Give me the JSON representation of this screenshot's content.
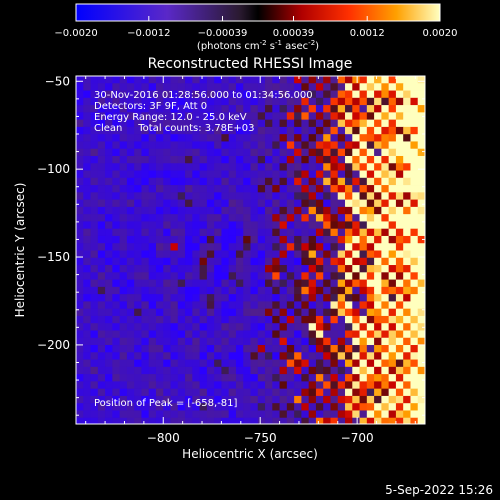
{
  "chart_data": {
    "type": "heatmap",
    "title": "Reconstructed RHESSI Image",
    "xlabel": "Heliocentric X (arcsec)",
    "ylabel": "Heliocentric Y (arcsec)",
    "xlim": [
      -845,
      -665
    ],
    "ylim": [
      -245,
      -47
    ],
    "x_ticks": [
      -800,
      -750,
      -700
    ],
    "x_tick_labels": [
      "−800",
      "−750",
      "−700"
    ],
    "y_ticks": [
      -50,
      -100,
      -150,
      -200
    ],
    "y_tick_labels": [
      "−50",
      "−100",
      "−150",
      "−200"
    ],
    "colorbar": {
      "label_parts": [
        "(photons cm",
        "-2",
        " s",
        "-1",
        " asec",
        "-2",
        ")"
      ],
      "range": [
        -0.002,
        0.002
      ],
      "ticks": [
        -0.002,
        -0.0012,
        -0.00039,
        0.00039,
        0.0012,
        0.002
      ],
      "tick_labels": [
        "−0.0020",
        "−0.0012",
        "−0.00039",
        "0.00039",
        "0.0012",
        "0.0020"
      ]
    },
    "annotations": [
      "30-Nov-2016 01:28:56.000 to 01:34:56.000",
      "Detectors: 3F 9F, Att 0",
      "Energy Range: 12.0 - 25.0 keV",
      "Clean     Total counts: 3.78E+03"
    ],
    "peak_label": "Position of Peak = [-658,-81]",
    "peak_position": [
      -658,
      -81
    ],
    "grid": false
  },
  "footer": {
    "date": "5-Sep-2022 15:26"
  }
}
